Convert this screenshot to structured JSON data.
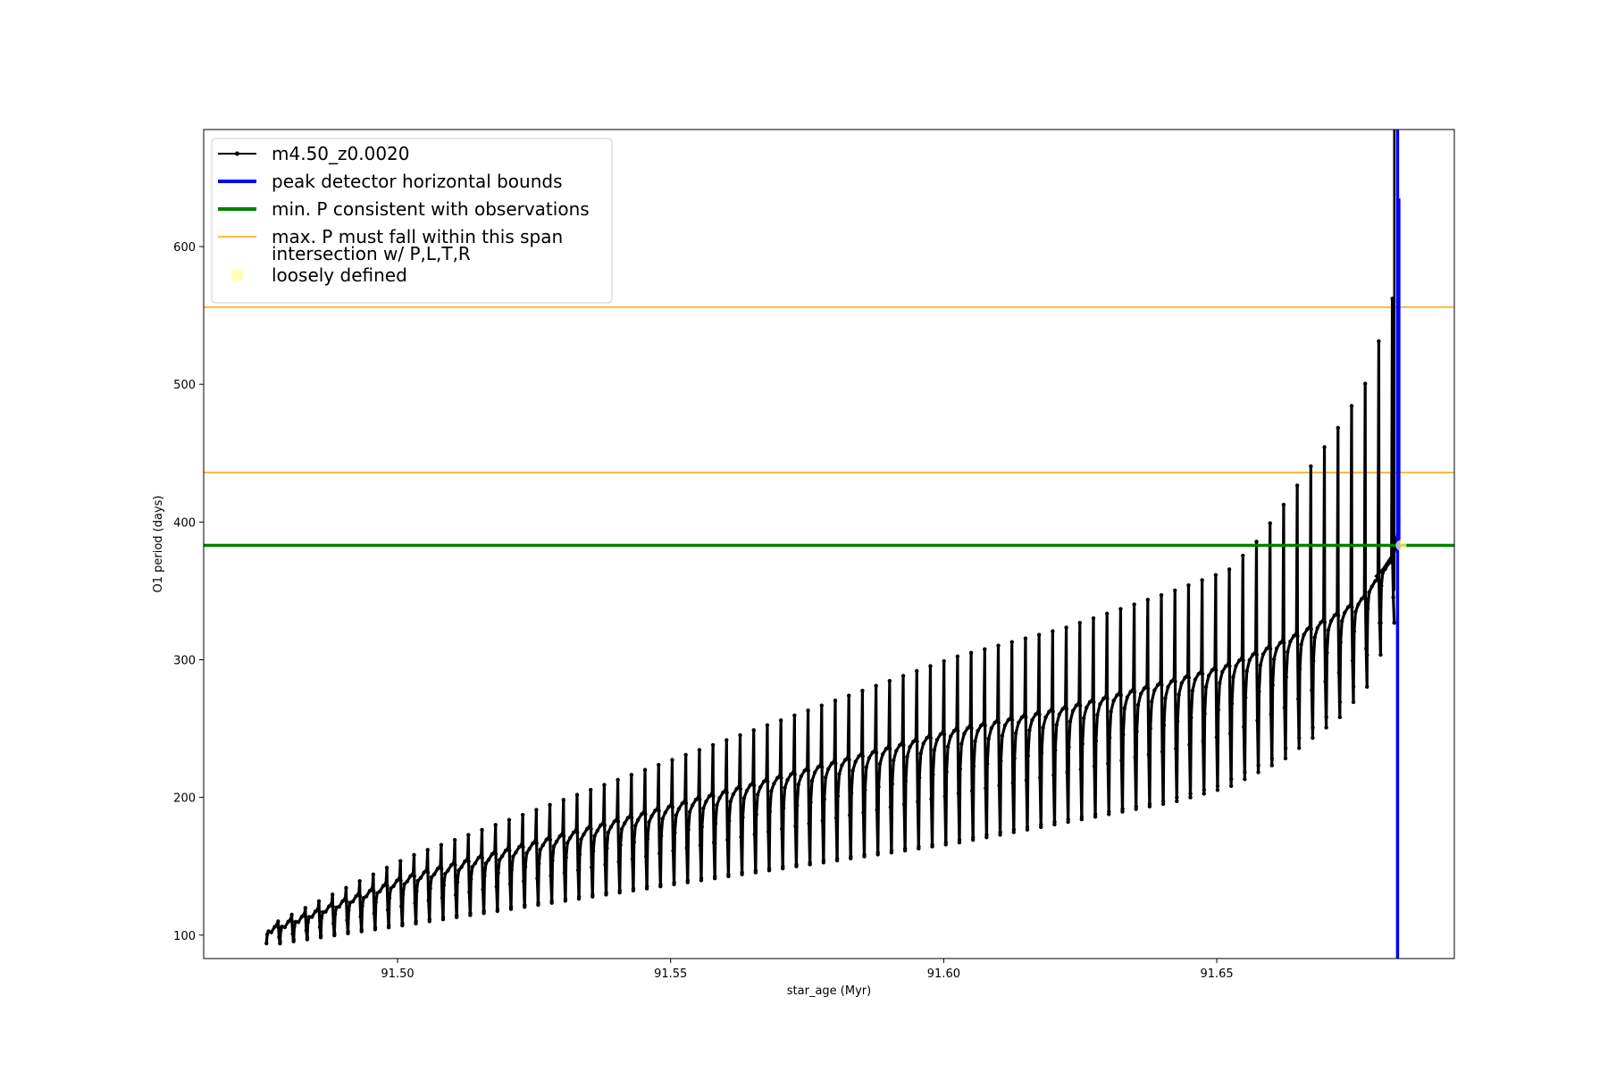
{
  "chart_data": {
    "type": "line",
    "xlabel": "star_age (Myr)",
    "ylabel": "O1 period (days)",
    "xlim": [
      91.4645,
      91.6935
    ],
    "ylim": [
      83,
      685
    ],
    "xticks": [
      91.5,
      91.55,
      91.6,
      91.65
    ],
    "xtick_labels": [
      "91.50",
      "91.55",
      "91.60",
      "91.65"
    ],
    "yticks": [
      100,
      200,
      300,
      400,
      500,
      600
    ],
    "ytick_labels": [
      "100",
      "200",
      "300",
      "400",
      "500",
      "600"
    ],
    "grid": false,
    "legend_position": "top-left",
    "series": [
      {
        "name": "m4.50_z0.0020",
        "color": "#000000",
        "kind": "oscillating-line",
        "x_start": 91.476,
        "x_end": 91.6825,
        "cycles": 83,
        "envelope_base": [
          [
            91.476,
            104
          ],
          [
            91.5,
            140
          ],
          [
            91.55,
            193
          ],
          [
            91.6,
            246
          ],
          [
            91.62,
            262
          ],
          [
            91.64,
            282
          ],
          [
            91.65,
            293
          ],
          [
            91.66,
            310
          ],
          [
            91.67,
            330
          ],
          [
            91.675,
            342
          ],
          [
            91.68,
            368
          ],
          [
            91.6825,
            380
          ]
        ],
        "envelope_low": [
          [
            91.476,
            94
          ],
          [
            91.5,
            108
          ],
          [
            91.55,
            138
          ],
          [
            91.6,
            167
          ],
          [
            91.64,
            197
          ],
          [
            91.65,
            208
          ],
          [
            91.66,
            228
          ],
          [
            91.67,
            258
          ],
          [
            91.675,
            280
          ],
          [
            91.6825,
            350
          ]
        ],
        "envelope_spike": [
          [
            91.476,
            110
          ],
          [
            91.5,
            157
          ],
          [
            91.55,
            230
          ],
          [
            91.6,
            302
          ],
          [
            91.62,
            323
          ],
          [
            91.64,
            350
          ],
          [
            91.65,
            365
          ],
          [
            91.655,
            385
          ],
          [
            91.66,
            412
          ],
          [
            91.665,
            440
          ],
          [
            91.67,
            468
          ],
          [
            91.675,
            500
          ],
          [
            91.68,
            562
          ],
          [
            91.6825,
            610
          ]
        ]
      },
      {
        "name": "peak detector horizontal bounds",
        "color": "#0000ff",
        "kind": "vertical-line",
        "x": 91.6831
      },
      {
        "name": "min. P consistent with observations",
        "color": "#008000",
        "kind": "horizontal-line",
        "y": 383
      },
      {
        "name": "max. P must fall within this span",
        "color": "#ffa500",
        "kind": "horizontal-lines",
        "y": [
          436,
          556
        ]
      },
      {
        "name": "intersection w/ P,L,T,R\nloosely defined",
        "color": "#ffff99",
        "kind": "points",
        "points": [
          [
            91.6831,
            383
          ]
        ]
      }
    ],
    "extra_marks": {
      "late_spike": {
        "x": 91.6825,
        "y_top": 685,
        "y_bottom": 350
      },
      "blue_bar_segment": {
        "x": 91.6833,
        "y_bottom": 380,
        "y_top": 635
      }
    }
  }
}
